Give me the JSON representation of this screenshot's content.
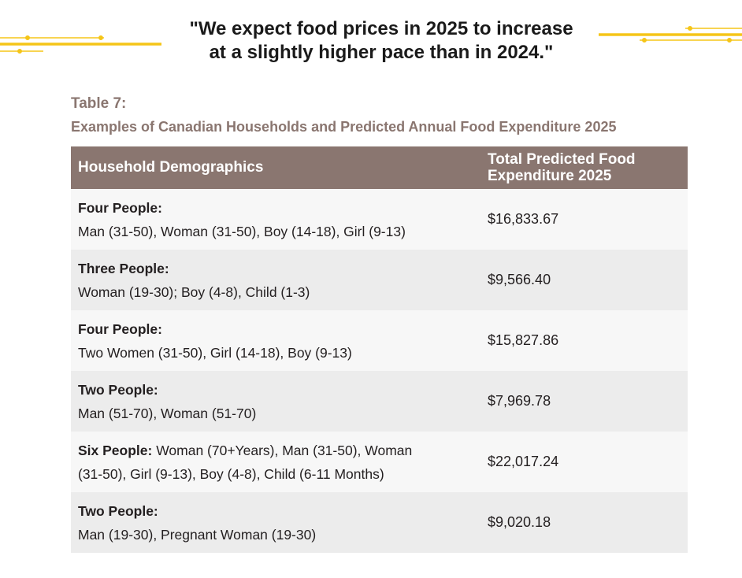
{
  "quote": {
    "line1": "\"We expect food prices in 2025 to increase",
    "line2": "at a slightly higher pace than in 2024.\""
  },
  "table": {
    "label": "Table 7:",
    "caption": "Examples of Canadian Households and Predicted Annual Food Expenditure 2025",
    "headers": {
      "demographics": "Household Demographics",
      "total_line1": "Total Predicted Food",
      "total_line2": "Expenditure 2025"
    },
    "rows": [
      {
        "who": "Four People:",
        "members": "Man (31-50), Woman (31-50), Boy (14-18), Girl (9-13)",
        "total": "$16,833.67"
      },
      {
        "who": "Three People:",
        "members": "Woman (19-30); Boy (4-8), Child (1-3)",
        "total": "$9,566.40"
      },
      {
        "who": "Four People:",
        "members": "Two Women (31-50), Girl (14-18), Boy (9-13)",
        "total": "$15,827.86"
      },
      {
        "who": "Two People:",
        "members": "Man (51-70), Woman (51-70)",
        "total": "$7,969.78"
      },
      {
        "who": "Six People:",
        "members_line1": "Woman (70+Years), Man (31-50), Woman",
        "members_line2": "(31-50), Girl (9-13), Boy (4-8), Child (6-11 Months)",
        "total": "$22,017.24"
      },
      {
        "who": "Two People:",
        "members": "Man (19-30), Pregnant Woman (19-30)",
        "total": "$9,020.18"
      }
    ]
  },
  "colors": {
    "accent": "#f5c518",
    "header_bg": "#8a7670",
    "caption_text": "#8a7670",
    "row_light": "#f7f7f7",
    "row_dark": "#ececec"
  }
}
